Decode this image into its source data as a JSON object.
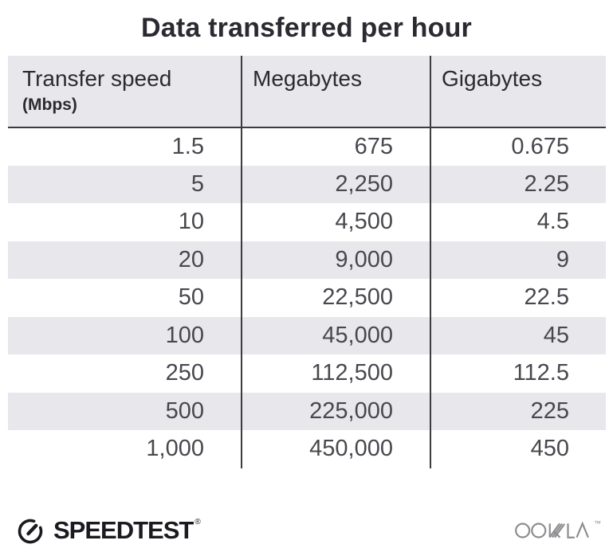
{
  "title": "Data transferred per hour",
  "chart_data": {
    "type": "table",
    "title": "Data transferred per hour",
    "columns": [
      {
        "label": "Transfer speed",
        "unit": "(Mbps)"
      },
      {
        "label": "Megabytes"
      },
      {
        "label": "Gigabytes"
      }
    ],
    "rows": [
      [
        "1.5",
        "675",
        "0.675"
      ],
      [
        "5",
        "2,250",
        "2.25"
      ],
      [
        "10",
        "4,500",
        "4.5"
      ],
      [
        "20",
        "9,000",
        "9"
      ],
      [
        "50",
        "22,500",
        "22.5"
      ],
      [
        "100",
        "45,000",
        "45"
      ],
      [
        "250",
        "112,500",
        "112.5"
      ],
      [
        "500",
        "225,000",
        "225"
      ],
      [
        "1,000",
        "450,000",
        "450"
      ]
    ],
    "layout": {
      "striped_rows": "even rows shaded",
      "column_dividers": true,
      "alignment": "right"
    }
  },
  "branding": {
    "speedtest_label": "SPEEDTEST",
    "speedtest_trademark": "®",
    "speedtest_icon": "speedometer-gauge-icon",
    "ookla_label": "OOKLA",
    "ookla_trademark": "™"
  },
  "colors": {
    "header_bg": "#e8e8ec",
    "stripe_bg": "#e8e8ec",
    "text_dark": "#2b2a30",
    "text_body": "#48474d",
    "divider": "#3c3b40",
    "logo_black": "#1b1a1f",
    "logo_gray": "#8d8c90"
  }
}
